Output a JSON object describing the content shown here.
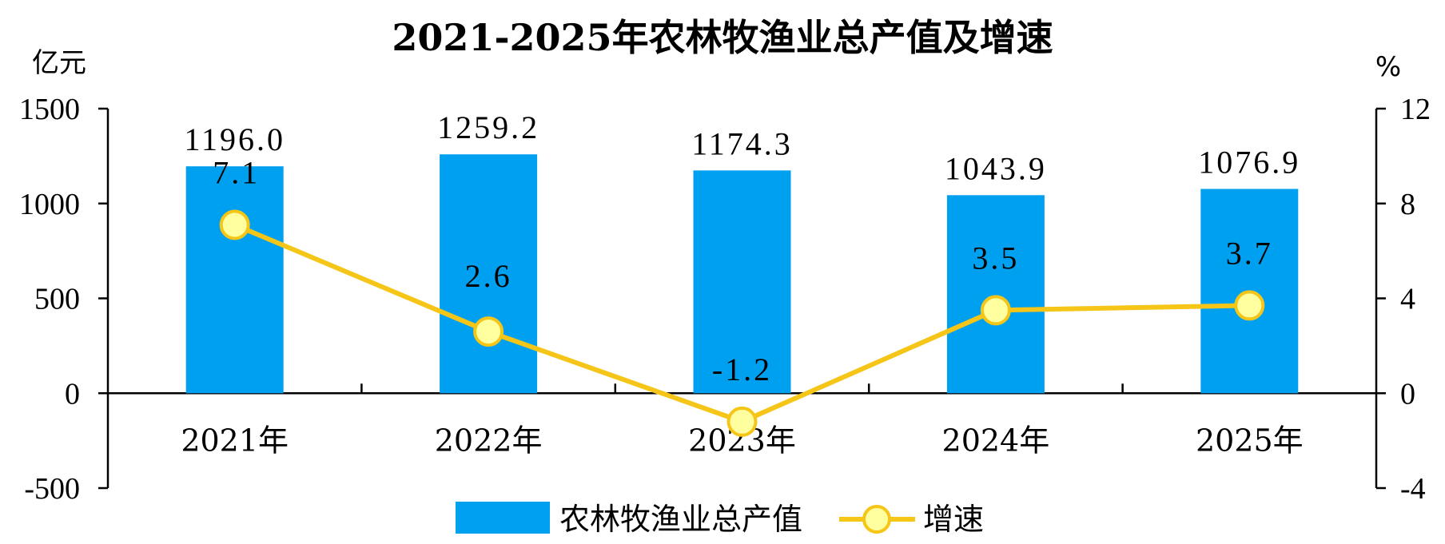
{
  "chart_data": {
    "type": "bar",
    "title": "2021-2025年农林牧渔业总产值及增速",
    "y_left_unit": "亿元",
    "y_right_unit": "%",
    "categories": [
      "2021年",
      "2022年",
      "2023年",
      "2024年",
      "2025年"
    ],
    "y_left_range": [
      -500,
      1500
    ],
    "y_left_ticks": [
      "-500",
      "0",
      "500",
      "1000",
      "1500"
    ],
    "y_right_range": [
      -4,
      12
    ],
    "y_right_ticks": [
      "-4",
      "0",
      "4",
      "8",
      "12"
    ],
    "series": [
      {
        "name": "农林牧渔业总产值",
        "type": "bar",
        "axis": "left",
        "color": "#00A0F0",
        "values": [
          1196.0,
          1259.2,
          1174.3,
          1043.9,
          1076.9
        ],
        "labels": [
          "1196.0",
          "1259.2",
          "1174.3",
          "1043.9",
          "1076.9"
        ]
      },
      {
        "name": "增速",
        "type": "line",
        "axis": "right",
        "color": "#F5C518",
        "marker_fill": "#FFFFA0",
        "values": [
          7.1,
          2.6,
          -1.2,
          3.5,
          3.7
        ],
        "labels": [
          "7.1",
          "2.6",
          "-1.2",
          "3.5",
          "3.7"
        ]
      }
    ],
    "grid": false,
    "legend_position": "bottom-center"
  }
}
